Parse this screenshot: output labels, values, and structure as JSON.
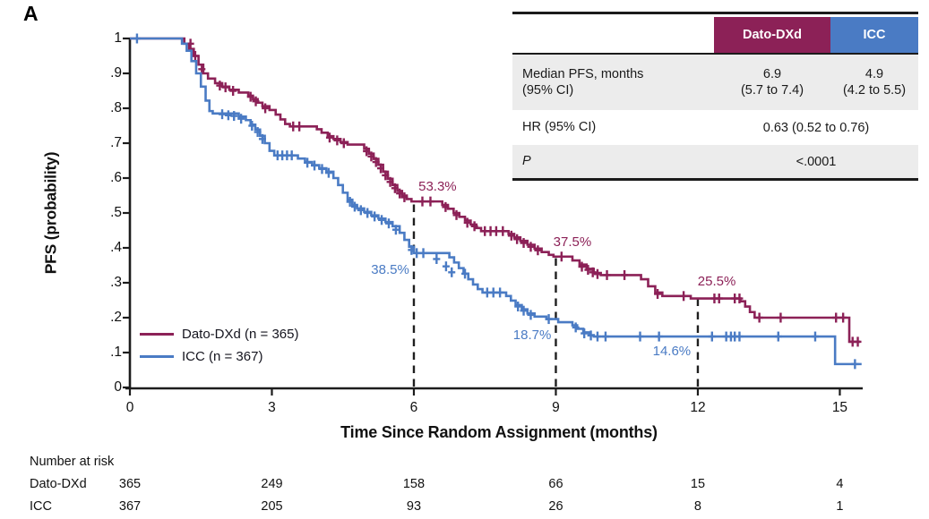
{
  "panel_label": "A",
  "chart_data": {
    "type": "line",
    "subtype": "kaplan-meier-step",
    "xlabel": "Time Since Random Assignment (months)",
    "ylabel": "PFS (probability)",
    "xlim": [
      0,
      15.6
    ],
    "ylim": [
      0,
      1
    ],
    "xticks": [
      0,
      3,
      6,
      9,
      12,
      15
    ],
    "ytick_labels": [
      "0",
      ".1",
      ".2",
      ".3",
      ".4",
      ".5",
      ".6",
      ".7",
      ".8",
      ".9",
      "1"
    ],
    "grid": false,
    "legend_position": "lower-left-inside",
    "series": [
      {
        "name": "Dato-DXd (n = 365)",
        "color": "#8C2157",
        "end_month": 15.43,
        "steps": [
          [
            0,
            1.0
          ],
          [
            1.15,
            0.985
          ],
          [
            1.25,
            0.97
          ],
          [
            1.35,
            0.95
          ],
          [
            1.45,
            0.925
          ],
          [
            1.55,
            0.9
          ],
          [
            1.65,
            0.885
          ],
          [
            1.8,
            0.872
          ],
          [
            1.95,
            0.862
          ],
          [
            2.1,
            0.853
          ],
          [
            2.3,
            0.845
          ],
          [
            2.5,
            0.836
          ],
          [
            2.6,
            0.826
          ],
          [
            2.7,
            0.816
          ],
          [
            2.8,
            0.806
          ],
          [
            2.95,
            0.795
          ],
          [
            3.08,
            0.782
          ],
          [
            3.18,
            0.768
          ],
          [
            3.28,
            0.755
          ],
          [
            3.38,
            0.748
          ],
          [
            3.95,
            0.74
          ],
          [
            4.05,
            0.73
          ],
          [
            4.18,
            0.72
          ],
          [
            4.3,
            0.712
          ],
          [
            4.45,
            0.703
          ],
          [
            4.6,
            0.696
          ],
          [
            4.95,
            0.684
          ],
          [
            5.05,
            0.67
          ],
          [
            5.15,
            0.655
          ],
          [
            5.25,
            0.638
          ],
          [
            5.35,
            0.618
          ],
          [
            5.45,
            0.598
          ],
          [
            5.55,
            0.58
          ],
          [
            5.65,
            0.563
          ],
          [
            5.75,
            0.55
          ],
          [
            5.85,
            0.54
          ],
          [
            5.95,
            0.533
          ],
          [
            6.6,
            0.523
          ],
          [
            6.72,
            0.512
          ],
          [
            6.84,
            0.5
          ],
          [
            6.96,
            0.489
          ],
          [
            7.08,
            0.478
          ],
          [
            7.2,
            0.467
          ],
          [
            7.32,
            0.457
          ],
          [
            7.42,
            0.448
          ],
          [
            8.0,
            0.44
          ],
          [
            8.12,
            0.43
          ],
          [
            8.25,
            0.42
          ],
          [
            8.4,
            0.409
          ],
          [
            8.55,
            0.398
          ],
          [
            8.7,
            0.388
          ],
          [
            8.85,
            0.38
          ],
          [
            8.95,
            0.375
          ],
          [
            9.35,
            0.364
          ],
          [
            9.5,
            0.352
          ],
          [
            9.65,
            0.34
          ],
          [
            9.8,
            0.328
          ],
          [
            9.95,
            0.322
          ],
          [
            10.8,
            0.31
          ],
          [
            10.95,
            0.29
          ],
          [
            11.1,
            0.272
          ],
          [
            11.25,
            0.262
          ],
          [
            11.85,
            0.255
          ],
          [
            12.9,
            0.247
          ],
          [
            13.0,
            0.232
          ],
          [
            13.1,
            0.216
          ],
          [
            13.2,
            0.2
          ],
          [
            15.2,
            0.131
          ]
        ],
        "censors": [
          [
            1.28,
            0.985
          ],
          [
            1.38,
            0.95
          ],
          [
            1.52,
            0.912
          ],
          [
            1.9,
            0.865
          ],
          [
            2.02,
            0.86
          ],
          [
            2.18,
            0.85
          ],
          [
            2.55,
            0.833
          ],
          [
            2.66,
            0.82
          ],
          [
            2.86,
            0.8
          ],
          [
            3.45,
            0.748
          ],
          [
            3.58,
            0.748
          ],
          [
            4.22,
            0.716
          ],
          [
            4.38,
            0.708
          ],
          [
            4.52,
            0.7
          ],
          [
            5.0,
            0.677
          ],
          [
            5.1,
            0.662
          ],
          [
            5.2,
            0.646
          ],
          [
            5.3,
            0.628
          ],
          [
            5.4,
            0.608
          ],
          [
            5.5,
            0.589
          ],
          [
            5.6,
            0.571
          ],
          [
            5.7,
            0.556
          ],
          [
            5.8,
            0.545
          ],
          [
            6.18,
            0.533
          ],
          [
            6.35,
            0.533
          ],
          [
            6.67,
            0.517
          ],
          [
            6.9,
            0.494
          ],
          [
            7.13,
            0.472
          ],
          [
            7.28,
            0.462
          ],
          [
            7.5,
            0.448
          ],
          [
            7.62,
            0.448
          ],
          [
            7.74,
            0.448
          ],
          [
            7.88,
            0.448
          ],
          [
            8.06,
            0.435
          ],
          [
            8.18,
            0.425
          ],
          [
            8.32,
            0.414
          ],
          [
            8.47,
            0.403
          ],
          [
            8.62,
            0.393
          ],
          [
            9.12,
            0.375
          ],
          [
            9.55,
            0.346
          ],
          [
            9.68,
            0.337
          ],
          [
            9.78,
            0.33
          ],
          [
            9.88,
            0.325
          ],
          [
            10.08,
            0.322
          ],
          [
            10.45,
            0.322
          ],
          [
            11.15,
            0.268
          ],
          [
            11.7,
            0.262
          ],
          [
            12.35,
            0.255
          ],
          [
            12.45,
            0.255
          ],
          [
            12.78,
            0.255
          ],
          [
            12.88,
            0.255
          ],
          [
            13.3,
            0.2
          ],
          [
            13.75,
            0.2
          ],
          [
            14.92,
            0.2
          ],
          [
            15.07,
            0.2
          ],
          [
            15.27,
            0.131
          ],
          [
            15.38,
            0.131
          ]
        ]
      },
      {
        "name": "ICC (n = 367)",
        "color": "#4A7BC4",
        "end_month": 15.46,
        "steps": [
          [
            0,
            1.0
          ],
          [
            1.1,
            0.985
          ],
          [
            1.2,
            0.965
          ],
          [
            1.3,
            0.935
          ],
          [
            1.4,
            0.9
          ],
          [
            1.5,
            0.862
          ],
          [
            1.6,
            0.822
          ],
          [
            1.68,
            0.792
          ],
          [
            1.75,
            0.785
          ],
          [
            2.3,
            0.776
          ],
          [
            2.45,
            0.766
          ],
          [
            2.55,
            0.753
          ],
          [
            2.65,
            0.739
          ],
          [
            2.75,
            0.721
          ],
          [
            2.85,
            0.7
          ],
          [
            2.95,
            0.678
          ],
          [
            3.05,
            0.665
          ],
          [
            3.55,
            0.656
          ],
          [
            3.7,
            0.646
          ],
          [
            3.85,
            0.637
          ],
          [
            4.0,
            0.628
          ],
          [
            4.15,
            0.618
          ],
          [
            4.3,
            0.6
          ],
          [
            4.4,
            0.58
          ],
          [
            4.5,
            0.558
          ],
          [
            4.6,
            0.538
          ],
          [
            4.7,
            0.523
          ],
          [
            4.8,
            0.513
          ],
          [
            4.95,
            0.503
          ],
          [
            5.1,
            0.493
          ],
          [
            5.25,
            0.484
          ],
          [
            5.4,
            0.474
          ],
          [
            5.55,
            0.462
          ],
          [
            5.7,
            0.443
          ],
          [
            5.8,
            0.423
          ],
          [
            5.9,
            0.403
          ],
          [
            6.0,
            0.385
          ],
          [
            6.75,
            0.373
          ],
          [
            6.85,
            0.358
          ],
          [
            6.95,
            0.342
          ],
          [
            7.05,
            0.326
          ],
          [
            7.15,
            0.31
          ],
          [
            7.25,
            0.295
          ],
          [
            7.35,
            0.282
          ],
          [
            7.45,
            0.272
          ],
          [
            7.95,
            0.262
          ],
          [
            8.05,
            0.249
          ],
          [
            8.15,
            0.236
          ],
          [
            8.28,
            0.224
          ],
          [
            8.4,
            0.212
          ],
          [
            8.55,
            0.203
          ],
          [
            8.8,
            0.196
          ],
          [
            9.05,
            0.187
          ],
          [
            9.35,
            0.178
          ],
          [
            9.45,
            0.168
          ],
          [
            9.58,
            0.158
          ],
          [
            9.7,
            0.15
          ],
          [
            9.8,
            0.146
          ],
          [
            14.9,
            0.067
          ]
        ],
        "censors": [
          [
            0.15,
            1.0
          ],
          [
            1.95,
            0.783
          ],
          [
            2.08,
            0.78
          ],
          [
            2.2,
            0.778
          ],
          [
            2.35,
            0.77
          ],
          [
            2.58,
            0.75
          ],
          [
            2.7,
            0.732
          ],
          [
            2.8,
            0.712
          ],
          [
            3.12,
            0.665
          ],
          [
            3.22,
            0.665
          ],
          [
            3.32,
            0.665
          ],
          [
            3.42,
            0.665
          ],
          [
            3.75,
            0.644
          ],
          [
            3.9,
            0.636
          ],
          [
            4.06,
            0.626
          ],
          [
            4.2,
            0.615
          ],
          [
            4.65,
            0.532
          ],
          [
            4.75,
            0.518
          ],
          [
            4.88,
            0.508
          ],
          [
            5.02,
            0.5
          ],
          [
            5.17,
            0.49
          ],
          [
            5.32,
            0.48
          ],
          [
            5.47,
            0.47
          ],
          [
            5.62,
            0.452
          ],
          [
            5.95,
            0.394
          ],
          [
            6.06,
            0.385
          ],
          [
            6.2,
            0.385
          ],
          [
            6.48,
            0.368
          ],
          [
            6.68,
            0.347
          ],
          [
            6.8,
            0.33
          ],
          [
            7.08,
            0.326
          ],
          [
            7.55,
            0.272
          ],
          [
            7.68,
            0.272
          ],
          [
            7.82,
            0.272
          ],
          [
            8.2,
            0.232
          ],
          [
            8.32,
            0.22
          ],
          [
            8.47,
            0.208
          ],
          [
            8.85,
            0.196
          ],
          [
            9.42,
            0.172
          ],
          [
            9.6,
            0.155
          ],
          [
            9.74,
            0.149
          ],
          [
            9.88,
            0.146
          ],
          [
            10.05,
            0.146
          ],
          [
            10.78,
            0.146
          ],
          [
            11.18,
            0.146
          ],
          [
            12.3,
            0.146
          ],
          [
            12.6,
            0.146
          ],
          [
            12.7,
            0.146
          ],
          [
            12.78,
            0.146
          ],
          [
            12.88,
            0.146
          ],
          [
            13.7,
            0.146
          ],
          [
            14.48,
            0.146
          ],
          [
            15.32,
            0.067
          ]
        ]
      }
    ],
    "dashed_reference_lines": [
      {
        "month": 6,
        "top_prob": 0.533
      },
      {
        "month": 9,
        "top_prob": 0.375
      },
      {
        "month": 12,
        "top_prob": 0.255
      }
    ],
    "annotations": [
      {
        "text": "53.3%",
        "series": 0,
        "month": 6.5,
        "prob": 0.575
      },
      {
        "text": "38.5%",
        "series": 1,
        "month": 5.5,
        "prob": 0.335
      },
      {
        "text": "37.5%",
        "series": 0,
        "month": 9.35,
        "prob": 0.415
      },
      {
        "text": "18.7%",
        "series": 1,
        "month": 8.5,
        "prob": 0.148
      },
      {
        "text": "25.5%",
        "series": 0,
        "month": 12.4,
        "prob": 0.302
      },
      {
        "text": "14.6%",
        "series": 1,
        "month": 11.45,
        "prob": 0.103
      }
    ]
  },
  "summary_table": {
    "col_dato": "Dato-DXd",
    "col_icc": "ICC",
    "col_dato_color": "#8C2157",
    "col_icc_color": "#4A7BC4",
    "median_label_1": "Median PFS, months",
    "median_label_2": "(95% CI)",
    "median_dato_1": "6.9",
    "median_dato_2": "(5.7 to 7.4)",
    "median_icc_1": "4.9",
    "median_icc_2": "(4.2 to 5.5)",
    "hr_label": "HR (95% CI)",
    "hr_value": "0.63 (0.52 to 0.76)",
    "p_label": "P",
    "p_value": "<.0001"
  },
  "risk_table": {
    "title": "Number at risk",
    "timepoints": [
      0,
      3,
      6,
      9,
      12,
      15
    ],
    "rows": [
      {
        "label": "Dato-DXd",
        "values": [
          "365",
          "249",
          "158",
          "66",
          "15",
          "4"
        ]
      },
      {
        "label": "ICC",
        "values": [
          "367",
          "205",
          "93",
          "26",
          "8",
          "1"
        ]
      }
    ]
  }
}
